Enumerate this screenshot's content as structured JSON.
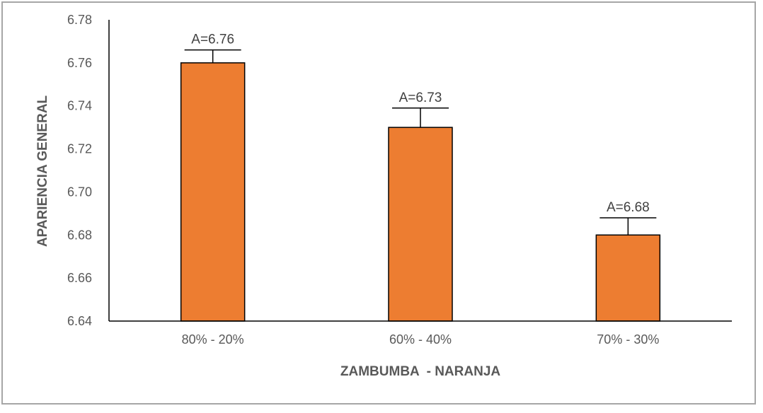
{
  "chart_data": {
    "type": "bar",
    "title": "",
    "xlabel": "ZAMBUMBA  - NARANJA",
    "ylabel": "APARIENCIA GENERAL",
    "categories": [
      "80% - 20%",
      "60% - 40%",
      "70% - 30%"
    ],
    "values": [
      6.76,
      6.73,
      6.68
    ],
    "error_upper": [
      6.766,
      6.739,
      6.688
    ],
    "data_labels": [
      "A=6.76",
      "A=6.73",
      "A=6.68"
    ],
    "ylim": [
      6.64,
      6.78
    ],
    "yticks": [
      "6.64",
      "6.66",
      "6.68",
      "6.70",
      "6.72",
      "6.74",
      "6.76",
      "6.78"
    ],
    "grid": false,
    "legend": "none",
    "colors": {
      "bar": "#ed7d31",
      "bar_edge": "#000000",
      "axis": "#000000"
    }
  }
}
